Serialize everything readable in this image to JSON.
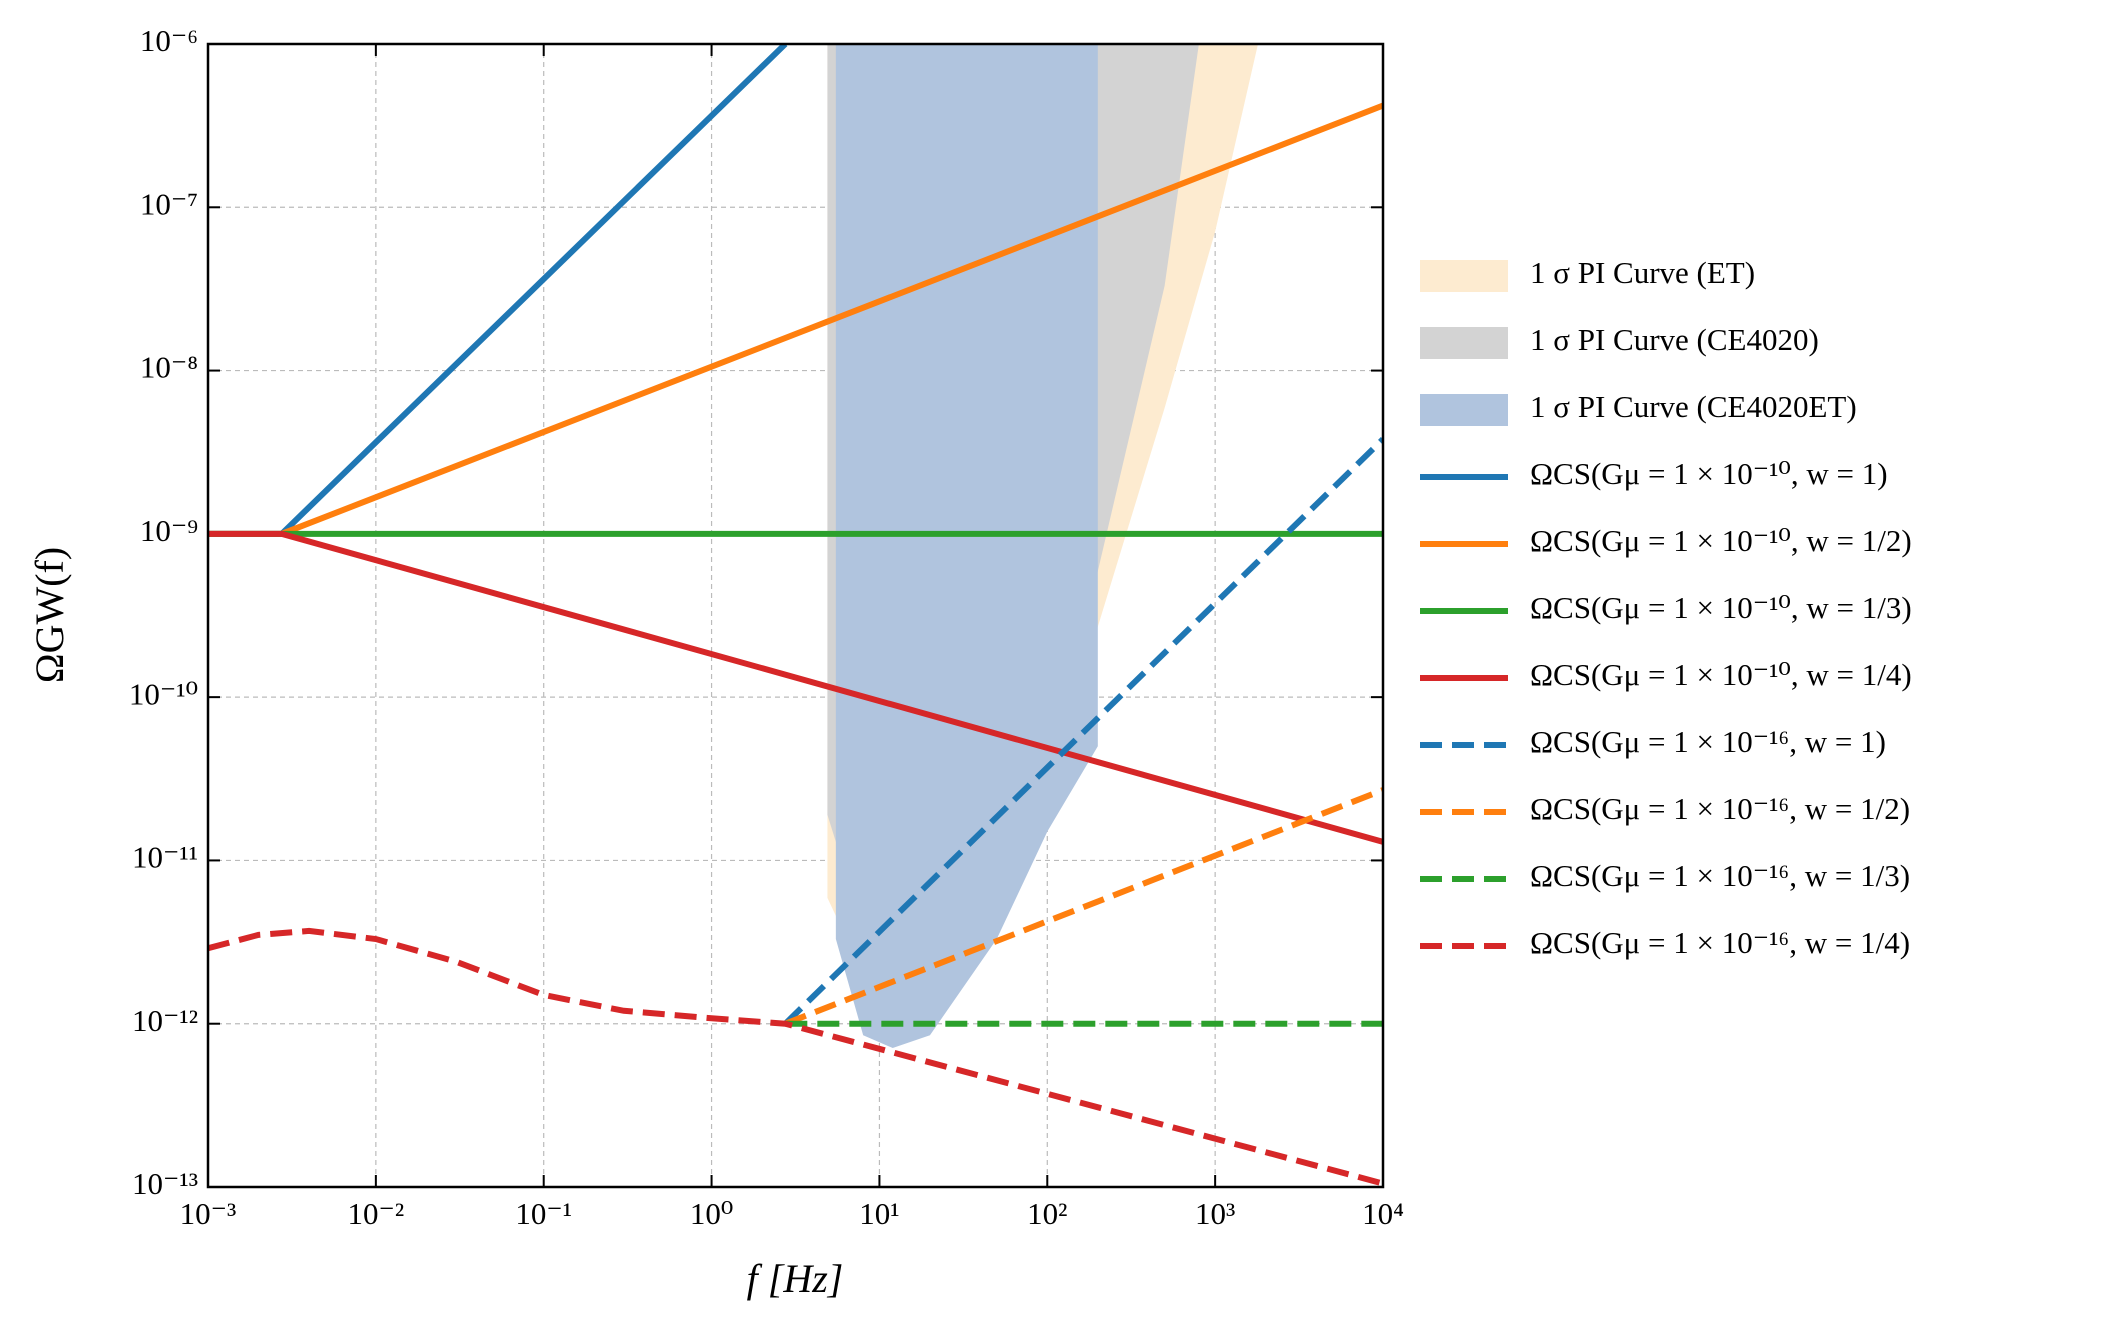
{
  "chart_data": {
    "type": "line",
    "xlabel": "f [Hz]",
    "ylabel": "ΩGW(f)",
    "xscale": "log",
    "yscale": "log",
    "grid": true,
    "legend": "outside-right",
    "xlim": [
      0.001,
      10000
    ],
    "ylim": [
      1e-13,
      1e-06
    ],
    "xticks": [
      {
        "value": 0.001,
        "label": "10⁻³"
      },
      {
        "value": 0.01,
        "label": "10⁻²"
      },
      {
        "value": 0.1,
        "label": "10⁻¹"
      },
      {
        "value": 1,
        "label": "10⁰"
      },
      {
        "value": 10,
        "label": "10¹"
      },
      {
        "value": 100,
        "label": "10²"
      },
      {
        "value": 1000,
        "label": "10³"
      },
      {
        "value": 10000,
        "label": "10⁴"
      }
    ],
    "yticks": [
      {
        "value": 1e-13,
        "label": "10⁻¹³"
      },
      {
        "value": 1e-12,
        "label": "10⁻¹²"
      },
      {
        "value": 1e-11,
        "label": "10⁻¹¹"
      },
      {
        "value": 1e-10,
        "label": "10⁻¹⁰"
      },
      {
        "value": 1e-09,
        "label": "10⁻⁹"
      },
      {
        "value": 1e-08,
        "label": "10⁻⁸"
      },
      {
        "value": 1e-07,
        "label": "10⁻⁷"
      },
      {
        "value": 1e-06,
        "label": "10⁻⁶"
      }
    ],
    "series": [
      {
        "name": "1 σ PI Curve (ET)",
        "type": "area",
        "color": "#fdebd0",
        "x": [
          4.9,
          7,
          10,
          20,
          50,
          100,
          200,
          500,
          1000,
          1800
        ],
        "values": [
          5.9e-12,
          2.7e-12,
          1.9e-12,
          2.7e-12,
          8.5e-12,
          4e-11,
          2.7e-10,
          5.9e-09,
          7.1e-08,
          1e-06
        ]
      },
      {
        "name": "1 σ PI Curve (CE4020)",
        "type": "area",
        "color": "#d3d3d3",
        "x": [
          4.9,
          7,
          10,
          20,
          50,
          100,
          200,
          500,
          800
        ],
        "values": [
          1.9e-11,
          5.9e-12,
          3.3e-12,
          4e-12,
          1.3e-11,
          5.9e-11,
          5.9e-10,
          3.3e-08,
          1e-06
        ]
      },
      {
        "name": "1 σ PI Curve (CE4020ET)",
        "type": "area",
        "color": "#b0c4de",
        "x": [
          5.5,
          8,
          12,
          20,
          50,
          100,
          200
        ],
        "values": [
          3.3e-12,
          8.5e-13,
          7.1e-13,
          8.5e-13,
          3.3e-12,
          1.5e-11,
          5e-11
        ]
      },
      {
        "name": "ΩCS(Gμ = 1 × 10⁻¹⁰, w = 1)",
        "type": "line",
        "dash": false,
        "color": "#1f77b4",
        "x": [
          0.001,
          0.00275,
          2.75
        ],
        "values": [
          1e-09,
          1e-09,
          1e-06
        ]
      },
      {
        "name": "ΩCS(Gμ = 1 × 10⁻¹⁰, w = 1/2)",
        "type": "line",
        "dash": false,
        "color": "#ff7f0e",
        "x": [
          0.001,
          0.00275,
          10000
        ],
        "values": [
          1e-09,
          1e-09,
          4.2e-07
        ]
      },
      {
        "name": "ΩCS(Gμ = 1 × 10⁻¹⁰, w = 1/3)",
        "type": "line",
        "dash": false,
        "color": "#2ca02c",
        "x": [
          0.001,
          10000
        ],
        "values": [
          1e-09,
          1e-09
        ]
      },
      {
        "name": "ΩCS(Gμ = 1 × 10⁻¹⁰, w = 1/4)",
        "type": "line",
        "dash": false,
        "color": "#d62728",
        "x": [
          0.001,
          0.00275,
          10000
        ],
        "values": [
          1e-09,
          1e-09,
          1.3e-11
        ]
      },
      {
        "name": "ΩCS(Gμ = 1 × 10⁻¹⁶, w = 1)",
        "type": "line",
        "dash": true,
        "color": "#1f77b4",
        "x": [
          2.75,
          10000
        ],
        "values": [
          1e-12,
          3.8e-09
        ]
      },
      {
        "name": "ΩCS(Gμ = 1 × 10⁻¹⁶, w = 1/2)",
        "type": "line",
        "dash": true,
        "color": "#ff7f0e",
        "x": [
          2.75,
          10000
        ],
        "values": [
          1e-12,
          2.7e-11
        ]
      },
      {
        "name": "ΩCS(Gμ = 1 × 10⁻¹⁶, w = 1/3)",
        "type": "line",
        "dash": true,
        "color": "#2ca02c",
        "x": [
          2.75,
          10000
        ],
        "values": [
          1e-12,
          1e-12
        ]
      },
      {
        "name": "ΩCS(Gμ = 1 × 10⁻¹⁶, w = 1/4)",
        "type": "line",
        "dash": true,
        "color": "#d62728",
        "x": [
          0.001,
          0.002,
          0.004,
          0.01,
          0.03,
          0.1,
          0.3,
          1,
          2.75,
          10000
        ],
        "values": [
          2.9e-12,
          3.5e-12,
          3.7e-12,
          3.3e-12,
          2.4e-12,
          1.5e-12,
          1.2e-12,
          1.08e-12,
          1e-12,
          1.05e-13
        ]
      }
    ]
  }
}
